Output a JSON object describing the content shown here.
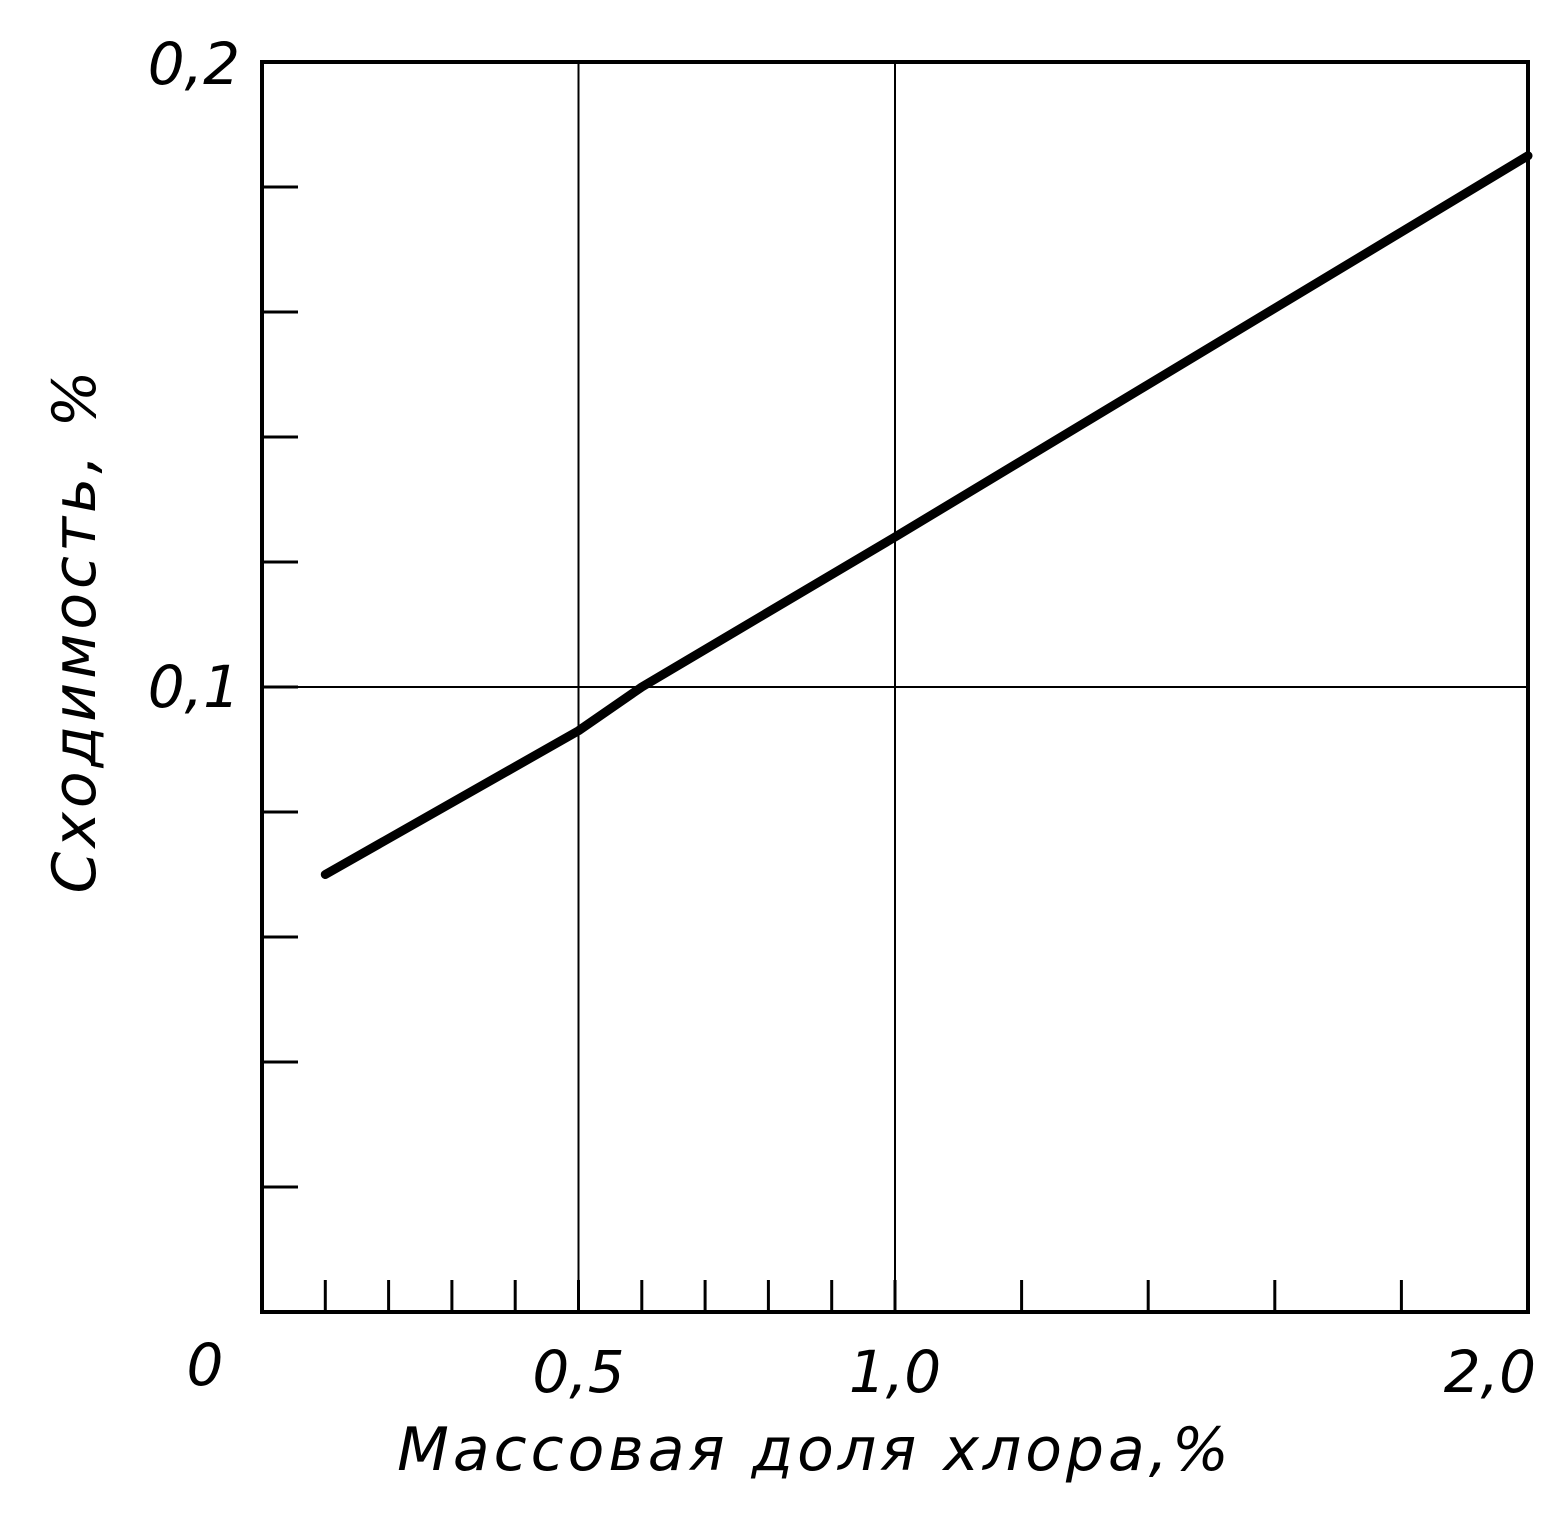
{
  "chart_data": {
    "type": "line",
    "title": "",
    "xlabel": "Массовая доля хлора,%",
    "ylabel": "Сходимость, %",
    "xlim": [
      0,
      2.0
    ],
    "ylim": [
      0,
      0.2
    ],
    "x_ticks_major": [
      {
        "value": 0.5,
        "label": "0,5"
      },
      {
        "value": 1.0,
        "label": "1,0"
      },
      {
        "value": 2.0,
        "label": "2,0"
      }
    ],
    "origin_label": "0",
    "x_ticks_minor": [
      0.1,
      0.2,
      0.3,
      0.4,
      0.6,
      0.7,
      0.8,
      0.9,
      1.2,
      1.4,
      1.6,
      1.8
    ],
    "y_ticks_major": [
      {
        "value": 0.1,
        "label": "0,1"
      },
      {
        "value": 0.2,
        "label": "0,2"
      }
    ],
    "y_ticks_minor": [
      0.02,
      0.04,
      0.06,
      0.08,
      0.12,
      0.14,
      0.16,
      0.18
    ],
    "grid": true,
    "grid_x": [
      0.5,
      1.0
    ],
    "grid_y": [
      0.1
    ],
    "series": [
      {
        "x": [
          0.1,
          0.5,
          0.6,
          1.0,
          2.0
        ],
        "y": [
          0.07,
          0.093,
          0.1,
          0.124,
          0.185
        ]
      }
    ],
    "line_color": "#000000"
  }
}
